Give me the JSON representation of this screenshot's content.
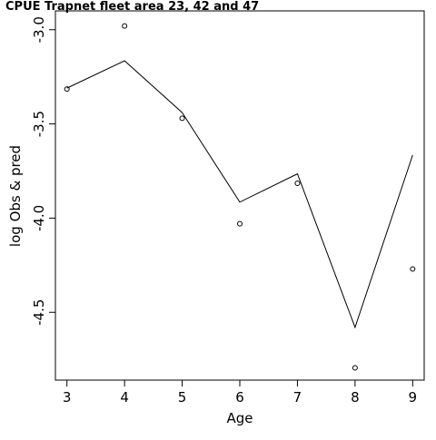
{
  "chart_data": {
    "type": "line",
    "title": "CPUE Trapnet fleet area 23, 42 and 47",
    "xlabel": "Age",
    "ylabel": "log Obs & pred",
    "x_ticks": [
      "3",
      "4",
      "5",
      "6",
      "7",
      "8",
      "9"
    ],
    "y_ticks": [
      "-3.0",
      "-3.5",
      "-4.0",
      "-4.5"
    ],
    "xlim": [
      2.8,
      9.2
    ],
    "ylim": [
      -4.86,
      -2.9
    ],
    "grid": false,
    "series": [
      {
        "kind": "line",
        "x": [
          3,
          4,
          5,
          6,
          7,
          8,
          9
        ],
        "y": [
          -3.31,
          -3.165,
          -3.44,
          -3.915,
          -3.765,
          -4.58,
          -3.665
        ]
      },
      {
        "kind": "points",
        "x": [
          3,
          4,
          5,
          6,
          7,
          8,
          9
        ],
        "y": [
          -3.315,
          -2.98,
          -3.47,
          -4.03,
          -3.815,
          -4.795,
          -4.27
        ]
      }
    ]
  }
}
